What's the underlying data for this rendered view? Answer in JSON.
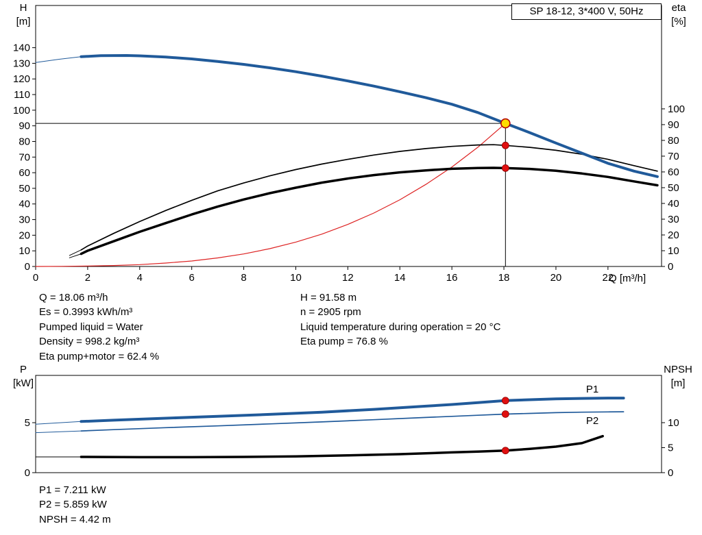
{
  "title_box": "SP 18-12, 3*400 V, 50Hz",
  "axis_labels": {
    "h": "H",
    "h_unit": "[m]",
    "eta": "eta",
    "eta_unit": "[%]",
    "q": "Q [m³/h]",
    "p": "P",
    "p_unit": "[kW]",
    "npsh": "NPSH",
    "npsh_unit": "[m]"
  },
  "info_top_left": [
    "Q = 18.06 m³/h",
    "Es = 0.3993 kWh/m³",
    "Pumped liquid = Water",
    "Density = 998.2 kg/m³",
    "Eta pump+motor = 62.4 %"
  ],
  "info_top_right": [
    "H = 91.58 m",
    "n = 2905 rpm",
    "Liquid temperature during operation = 20 °C",
    "Eta pump = 76.8 %"
  ],
  "info_bottom": [
    "P1 = 7.211 kW",
    "P2 = 5.859 kW",
    "NPSH = 4.42 m"
  ],
  "colors": {
    "blue": "#205a9a",
    "red": "#dd2222",
    "black": "#000000",
    "duty_fill": "#ffdd00",
    "duty_ring": "#b30000",
    "marker_red": "#e01010"
  },
  "chart_data": [
    {
      "id": "top",
      "type": "line",
      "title": "SP 18-12, 3*400 V, 50Hz",
      "x_axis": {
        "label": "Q [m³/h]",
        "min": 0,
        "max": 24.06,
        "ticks": [
          0,
          2,
          4,
          6,
          8,
          10,
          12,
          14,
          16,
          18,
          20,
          22
        ],
        "show_tick_labels": true
      },
      "y_left": {
        "label": "H [m]",
        "min": 0,
        "max": 167,
        "ticks": [
          0,
          10,
          20,
          30,
          40,
          50,
          60,
          70,
          80,
          90,
          100,
          110,
          120,
          130,
          140
        ]
      },
      "y_right": {
        "label": "eta [%]",
        "min": 0,
        "max": 165.6,
        "ticks": [
          0,
          10,
          20,
          30,
          40,
          50,
          60,
          70,
          80,
          90,
          100
        ]
      },
      "series": [
        {
          "name": "head-lead",
          "axis": "left",
          "color": "blue",
          "width": 1,
          "points": [
            [
              0,
              130.5
            ],
            [
              0.9,
              132.6
            ],
            [
              1.75,
              134.2
            ]
          ]
        },
        {
          "name": "system-curve",
          "axis": "left",
          "color": "red",
          "width": 1.2,
          "points": [
            [
              0,
              0
            ],
            [
              1,
              0.1
            ],
            [
              2,
              0.3
            ],
            [
              3,
              0.6
            ],
            [
              4,
              1.2
            ],
            [
              5,
              2.2
            ],
            [
              6,
              3.5
            ],
            [
              7,
              5.5
            ],
            [
              8,
              8.0
            ],
            [
              9,
              11.4
            ],
            [
              10,
              15.6
            ],
            [
              11,
              20.7
            ],
            [
              12,
              26.9
            ],
            [
              13,
              34.2
            ],
            [
              14,
              42.7
            ],
            [
              15,
              52.5
            ],
            [
              16,
              63.6
            ],
            [
              17,
              76.3
            ],
            [
              18.06,
              91.58
            ]
          ]
        },
        {
          "name": "eta-pump-lead",
          "axis": "right",
          "color": "black",
          "width": 1,
          "points": [
            [
              1.3,
              7
            ],
            [
              1.75,
              10.5
            ]
          ]
        },
        {
          "name": "eta-pump",
          "axis": "right",
          "color": "black",
          "width": 1.7,
          "points": [
            [
              1.75,
              10.5
            ],
            [
              2,
              13
            ],
            [
              3,
              21
            ],
            [
              4,
              28.5
            ],
            [
              5,
              35.5
            ],
            [
              6,
              42
            ],
            [
              7,
              48
            ],
            [
              8,
              53
            ],
            [
              9,
              57.5
            ],
            [
              10,
              61.5
            ],
            [
              11,
              65
            ],
            [
              12,
              68
            ],
            [
              13,
              70.7
            ],
            [
              14,
              73
            ],
            [
              15,
              74.8
            ],
            [
              16,
              76.2
            ],
            [
              17,
              77.1
            ],
            [
              17.6,
              77.3
            ],
            [
              18.06,
              76.8
            ],
            [
              19,
              75.6
            ],
            [
              20,
              73.7
            ],
            [
              21,
              71.2
            ],
            [
              22,
              68
            ],
            [
              23,
              64
            ],
            [
              23.9,
              60.5
            ]
          ]
        },
        {
          "name": "eta-pump-motor-lead",
          "axis": "right",
          "color": "black",
          "width": 1,
          "points": [
            [
              1.3,
              5.5
            ],
            [
              1.75,
              8
            ]
          ]
        },
        {
          "name": "eta-pump-motor",
          "axis": "right",
          "color": "black",
          "width": 3.5,
          "points": [
            [
              1.75,
              8
            ],
            [
              2,
              10
            ],
            [
              3,
              16
            ],
            [
              4,
              22
            ],
            [
              5,
              27.5
            ],
            [
              6,
              33
            ],
            [
              7,
              38
            ],
            [
              8,
              42.5
            ],
            [
              9,
              46.5
            ],
            [
              10,
              50
            ],
            [
              11,
              53.2
            ],
            [
              12,
              55.8
            ],
            [
              13,
              58
            ],
            [
              14,
              59.7
            ],
            [
              15,
              61
            ],
            [
              16,
              62
            ],
            [
              17,
              62.5
            ],
            [
              17.6,
              62.6
            ],
            [
              18.06,
              62.4
            ],
            [
              19,
              61.9
            ],
            [
              20,
              60.7
            ],
            [
              21,
              59
            ],
            [
              22,
              56.8
            ],
            [
              23,
              54
            ],
            [
              23.9,
              51.5
            ]
          ]
        },
        {
          "name": "head-curve",
          "axis": "left",
          "color": "blue",
          "width": 4,
          "points": [
            [
              1.75,
              134.2
            ],
            [
              2.5,
              134.9
            ],
            [
              3.5,
              135
            ],
            [
              4,
              134.8
            ],
            [
              5,
              134
            ],
            [
              6,
              132.8
            ],
            [
              7,
              131.2
            ],
            [
              8,
              129.3
            ],
            [
              9,
              127.1
            ],
            [
              10,
              124.6
            ],
            [
              11,
              121.8
            ],
            [
              12,
              118.7
            ],
            [
              13,
              115.4
            ],
            [
              14,
              111.8
            ],
            [
              15,
              108
            ],
            [
              16,
              103.8
            ],
            [
              17,
              98.5
            ],
            [
              18.06,
              91.58
            ],
            [
              19,
              85.6
            ],
            [
              20,
              79
            ],
            [
              21,
              72.5
            ],
            [
              22,
              66
            ],
            [
              23,
              61
            ],
            [
              23.9,
              57.5
            ]
          ]
        }
      ],
      "duty_lines": {
        "q": 18.06,
        "h": 91.58,
        "v_top": 94.5
      },
      "markers": [
        {
          "x": 18.06,
          "y": 91.58,
          "axis": "left",
          "style": "duty",
          "name": "duty-point"
        },
        {
          "x": 18.06,
          "y": 76.8,
          "axis": "right",
          "style": "red",
          "name": "eta-pump-point"
        },
        {
          "x": 18.06,
          "y": 62.4,
          "axis": "right",
          "style": "red",
          "name": "eta-pump-motor-point"
        }
      ]
    },
    {
      "id": "bottom",
      "type": "line",
      "x_axis": {
        "label": "",
        "min": 0,
        "max": 24.06,
        "ticks": [],
        "show_tick_labels": false
      },
      "y_left": {
        "label": "P [kW]",
        "min": 0,
        "max": 9.73,
        "ticks": [
          0,
          5
        ]
      },
      "y_right": {
        "label": "NPSH [m]",
        "min": 0,
        "max": 19.45,
        "ticks": [
          0,
          5,
          10
        ]
      },
      "series": [
        {
          "name": "p1-lead",
          "axis": "left",
          "color": "blue",
          "width": 1,
          "points": [
            [
              0,
              4.85
            ],
            [
              1.75,
              5.12
            ]
          ]
        },
        {
          "name": "p2-lead",
          "axis": "left",
          "color": "blue",
          "width": 1,
          "points": [
            [
              0,
              4.0
            ],
            [
              1.75,
              4.17
            ]
          ]
        },
        {
          "name": "npsh-lead",
          "axis": "right",
          "color": "black",
          "width": 1,
          "points": [
            [
              0,
              3.15
            ],
            [
              1.75,
              3.15
            ]
          ]
        },
        {
          "name": "p1-curve",
          "axis": "left",
          "color": "blue",
          "width": 4,
          "points": [
            [
              1.75,
              5.12
            ],
            [
              3,
              5.25
            ],
            [
              5,
              5.45
            ],
            [
              7,
              5.63
            ],
            [
              9,
              5.83
            ],
            [
              11,
              6.05
            ],
            [
              13,
              6.33
            ],
            [
              15,
              6.65
            ],
            [
              16,
              6.82
            ],
            [
              17,
              7.0
            ],
            [
              18.06,
              7.211
            ],
            [
              19,
              7.3
            ],
            [
              20,
              7.38
            ],
            [
              21,
              7.43
            ],
            [
              22,
              7.46
            ],
            [
              22.6,
              7.46
            ]
          ]
        },
        {
          "name": "p2-curve",
          "axis": "left",
          "color": "blue",
          "width": 1.7,
          "points": [
            [
              1.75,
              4.17
            ],
            [
              3,
              4.3
            ],
            [
              5,
              4.5
            ],
            [
              7,
              4.68
            ],
            [
              9,
              4.88
            ],
            [
              11,
              5.08
            ],
            [
              13,
              5.3
            ],
            [
              15,
              5.52
            ],
            [
              16,
              5.63
            ],
            [
              17,
              5.74
            ],
            [
              18.06,
              5.859
            ],
            [
              19,
              5.93
            ],
            [
              20,
              6.0
            ],
            [
              21,
              6.05
            ],
            [
              22,
              6.08
            ],
            [
              22.6,
              6.09
            ]
          ]
        },
        {
          "name": "npsh-curve",
          "axis": "right",
          "color": "black",
          "width": 3.5,
          "points": [
            [
              1.75,
              3.15
            ],
            [
              4,
              3.1
            ],
            [
              6,
              3.1
            ],
            [
              8,
              3.15
            ],
            [
              10,
              3.25
            ],
            [
              12,
              3.45
            ],
            [
              14,
              3.7
            ],
            [
              16,
              4.05
            ],
            [
              17,
              4.2
            ],
            [
              18.06,
              4.42
            ],
            [
              19,
              4.75
            ],
            [
              20,
              5.2
            ],
            [
              21,
              5.9
            ],
            [
              21.8,
              7.3
            ]
          ]
        }
      ],
      "markers": [
        {
          "x": 18.06,
          "y": 7.211,
          "axis": "left",
          "style": "red",
          "name": "p1-point"
        },
        {
          "x": 18.06,
          "y": 5.859,
          "axis": "left",
          "style": "red",
          "name": "p2-point"
        },
        {
          "x": 18.06,
          "y": 4.42,
          "axis": "right",
          "style": "red",
          "name": "npsh-point"
        }
      ],
      "annotations": [
        {
          "text": "P1",
          "x": 21.4,
          "y": 8.35,
          "axis": "left",
          "color": "blue"
        },
        {
          "text": "P2",
          "x": 21.4,
          "y": 5.2,
          "axis": "left",
          "color": "blue"
        }
      ]
    }
  ]
}
